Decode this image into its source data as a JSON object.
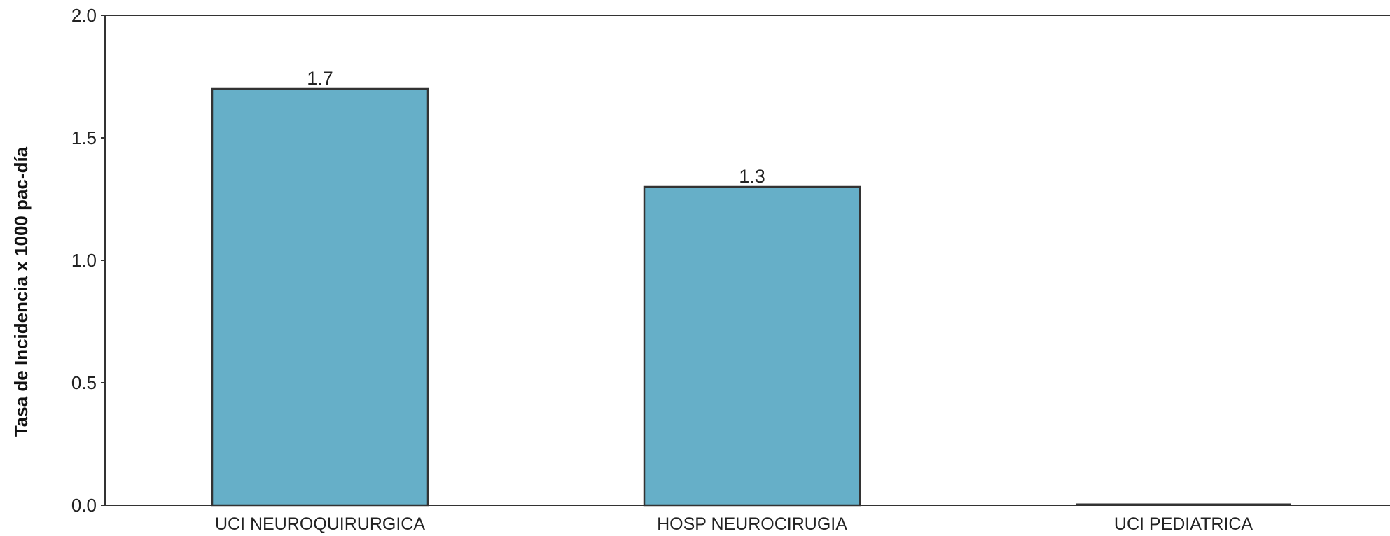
{
  "chart_data": {
    "type": "bar",
    "categories": [
      "UCI NEUROQUIRURGICA",
      "HOSP NEUROCIRUGIA",
      "UCI PEDIATRICA"
    ],
    "values": [
      1.7,
      1.3,
      0.0
    ],
    "data_labels": [
      "1.7",
      "1.3",
      ""
    ],
    "ylabel": "Tasa de Incidencia x 1000 pac-día",
    "xlabel": "",
    "ylim": [
      0,
      2.0
    ],
    "yticks": [
      0.0,
      0.5,
      1.0,
      1.5,
      2.0
    ],
    "ytick_labels": [
      "0.0",
      "0.5",
      "1.0",
      "1.5",
      "2.0"
    ],
    "grid": false,
    "legend": "none",
    "colors": {
      "bar": "#66afc8",
      "bar_edge": "#333333",
      "axis": "#333333"
    }
  }
}
